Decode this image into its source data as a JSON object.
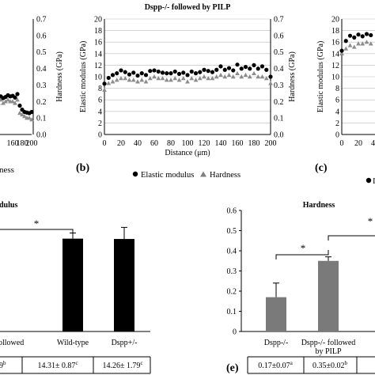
{
  "panels": {
    "b": {
      "title": "Dspp-/- followed by PILP",
      "label": "(b)",
      "xlabel": "Distance (μm)",
      "ylabel_left": "Elastic modulus (GPa)",
      "ylabel_right": "Hardness (GPa)",
      "legend_em": "Elastic modulus",
      "legend_h": "Hardness"
    },
    "a": {
      "legend_fragment": "ness"
    },
    "c": {
      "label": "(c)",
      "ylabel_left": "Elastic modulus (GPa)",
      "legend_fragment": "I"
    },
    "d": {
      "title_fragment": "dulus",
      "star": "*",
      "cat_fragment": "ollowed",
      "table_fragment": "9",
      "table_sup": "b"
    },
    "e": {
      "title": "Hardness",
      "label": "(e)",
      "star": "*",
      "star2": "*"
    }
  },
  "chart_data": [
    {
      "type": "scatter",
      "panel": "a (partial)",
      "x": [
        125,
        130,
        135,
        140,
        145,
        150,
        155,
        160,
        165,
        170,
        175,
        180,
        185,
        190,
        195,
        200
      ],
      "x_ticks": [
        "160",
        "180",
        "200"
      ],
      "ylim_right": [
        0,
        0.7
      ],
      "y_ticks_right": [
        "0.7",
        "0.6",
        "0.5",
        "0.4",
        "0.3",
        "0.2",
        "0.1",
        "0.0"
      ],
      "ylabel_right": "Hardness (GPa)",
      "series": [
        {
          "name": "Elastic modulus",
          "marker": "circle",
          "values": [
            6.5,
            6.4,
            6.6,
            6.3,
            6.5,
            6.8,
            6.6,
            6.7,
            6.4,
            7.0,
            5.0,
            4.3,
            3.9,
            3.8,
            3.7,
            3.9
          ]
        },
        {
          "name": "Hardness",
          "marker": "triangle",
          "values": [
            0.2,
            0.19,
            0.21,
            0.19,
            0.2,
            0.21,
            0.2,
            0.2,
            0.19,
            0.21,
            0.13,
            0.12,
            0.11,
            0.1,
            0.1,
            0.09
          ]
        }
      ]
    },
    {
      "type": "scatter",
      "panel": "b",
      "title": "Dspp-/- followed by PILP",
      "xlabel": "Distance (μm)",
      "ylabel": "Elastic modulus (GPa)",
      "ylabel_right": "Hardness (GPa)",
      "xlim": [
        0,
        200
      ],
      "ylim": [
        0,
        20
      ],
      "ylim_right": [
        0,
        0.7
      ],
      "x_ticks": [
        "0",
        "20",
        "40",
        "60",
        "80",
        "100",
        "120",
        "140",
        "160",
        "180",
        "200"
      ],
      "y_ticks": [
        "20",
        "18",
        "16",
        "14",
        "12",
        "10",
        "8",
        "6",
        "4",
        "2",
        "0"
      ],
      "y_ticks_right": [
        "0.7",
        "0.6",
        "0.5",
        "0.4",
        "0.3",
        "0.2",
        "0.1",
        "0.0"
      ],
      "x": [
        0,
        5,
        10,
        15,
        20,
        25,
        30,
        35,
        40,
        45,
        50,
        55,
        60,
        65,
        70,
        75,
        80,
        85,
        90,
        95,
        100,
        105,
        110,
        115,
        120,
        125,
        130,
        135,
        140,
        145,
        150,
        155,
        160,
        165,
        170,
        175,
        180,
        185,
        190,
        195,
        200
      ],
      "series": [
        {
          "name": "Elastic modulus",
          "marker": "circle",
          "values": [
            8.8,
            9.8,
            10.3,
            10.6,
            11.1,
            10.8,
            10.4,
            10.7,
            10.2,
            10.6,
            10.3,
            11.0,
            11.1,
            10.9,
            10.7,
            10.6,
            10.6,
            10.9,
            10.5,
            10.7,
            10.3,
            10.9,
            10.6,
            10.8,
            11.2,
            11.0,
            10.8,
            11.2,
            11.8,
            11.2,
            11.5,
            11.1,
            12.1,
            11.4,
            11.7,
            11.4,
            12.0,
            11.4,
            11.8,
            11.2,
            10.0
          ]
        },
        {
          "name": "Hardness",
          "marker": "triangle",
          "values": [
            0.27,
            0.31,
            0.32,
            0.33,
            0.34,
            0.34,
            0.33,
            0.33,
            0.32,
            0.33,
            0.32,
            0.34,
            0.35,
            0.34,
            0.34,
            0.33,
            0.33,
            0.34,
            0.33,
            0.34,
            0.32,
            0.34,
            0.33,
            0.34,
            0.35,
            0.34,
            0.34,
            0.35,
            0.36,
            0.35,
            0.36,
            0.35,
            0.37,
            0.35,
            0.36,
            0.35,
            0.37,
            0.35,
            0.35,
            0.34,
            0.31
          ]
        }
      ]
    },
    {
      "type": "scatter",
      "panel": "c (partial)",
      "ylabel": "Elastic modulus (GPa)",
      "xlim": [
        0,
        40
      ],
      "ylim": [
        0,
        20
      ],
      "x_ticks": [
        "0",
        "20",
        "40"
      ],
      "y_ticks": [
        "20",
        "18",
        "16",
        "14",
        "12",
        "10",
        "8",
        "6",
        "4",
        "2",
        "0"
      ],
      "x": [
        0,
        5,
        10,
        15,
        20,
        25,
        30,
        35
      ],
      "series": [
        {
          "name": "Elastic modulus",
          "marker": "circle",
          "values": [
            14.5,
            16.2,
            17.1,
            16.8,
            17.3,
            17.0,
            17.4,
            17.2
          ]
        },
        {
          "name": "Hardness",
          "marker": "triangle",
          "values": [
            0.49,
            0.52,
            0.54,
            0.53,
            0.55,
            0.55,
            0.56,
            0.55
          ]
        }
      ]
    },
    {
      "type": "bar",
      "panel": "d (partial)",
      "categories": [
        "Wild-type",
        "Dspp+/-"
      ],
      "values": [
        14.31,
        14.26
      ],
      "errors": [
        0.87,
        1.79
      ],
      "table_values": [
        "14.31± 0.87",
        "14.26± 1.79"
      ],
      "table_sup": [
        "c",
        "c"
      ],
      "ylim": [
        0,
        20
      ]
    },
    {
      "type": "bar",
      "panel": "e",
      "title": "Hardness",
      "categories": [
        "Dspp-/-",
        "Dspp-/- followed\nby PILP"
      ],
      "values": [
        0.17,
        0.35
      ],
      "errors": [
        0.07,
        0.02
      ],
      "table_values": [
        "0.17±0.07",
        "0.35±0.02"
      ],
      "table_sup": [
        "a",
        "b"
      ],
      "ylim": [
        0,
        0.6
      ],
      "y_ticks": [
        "0.6",
        "0.5",
        "0.4",
        "0.3",
        "0.2",
        "0.1",
        "0"
      ]
    }
  ]
}
